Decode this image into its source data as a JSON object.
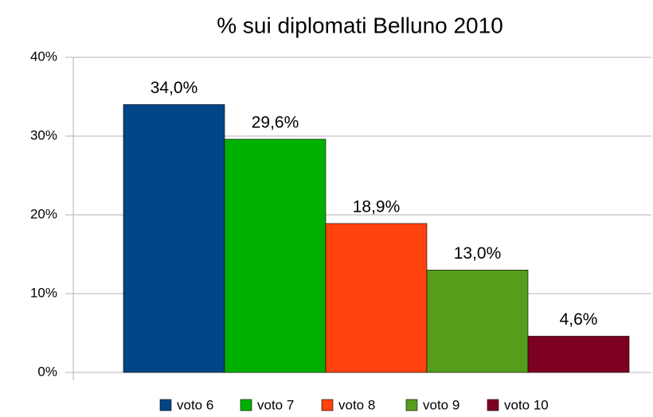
{
  "chart_data": {
    "type": "bar",
    "title": "% sui diplomati Belluno 2010",
    "series": [
      {
        "name": "voto 6",
        "color": "#004586",
        "values": [
          34.0
        ],
        "value_labels": [
          "34,0%"
        ]
      },
      {
        "name": "voto 7",
        "color": "#00b000",
        "values": [
          29.6
        ],
        "value_labels": [
          "29,6%"
        ]
      },
      {
        "name": "voto 8",
        "color": "#ff420e",
        "values": [
          18.9
        ],
        "value_labels": [
          "18,9%"
        ]
      },
      {
        "name": "voto 9",
        "color": "#579d1c",
        "values": [
          13.0
        ],
        "value_labels": [
          "13,0%"
        ]
      },
      {
        "name": "voto 10",
        "color": "#7e0021",
        "values": [
          4.6
        ],
        "value_labels": [
          "4,6%"
        ]
      }
    ],
    "ylim": [
      0,
      40
    ],
    "yticks": [
      {
        "value": 0,
        "label": "0%"
      },
      {
        "value": 10,
        "label": "10%"
      },
      {
        "value": 20,
        "label": "20%"
      },
      {
        "value": 30,
        "label": "30%"
      },
      {
        "value": 40,
        "label": "40%"
      }
    ],
    "grid": true,
    "legend": "bottom"
  }
}
